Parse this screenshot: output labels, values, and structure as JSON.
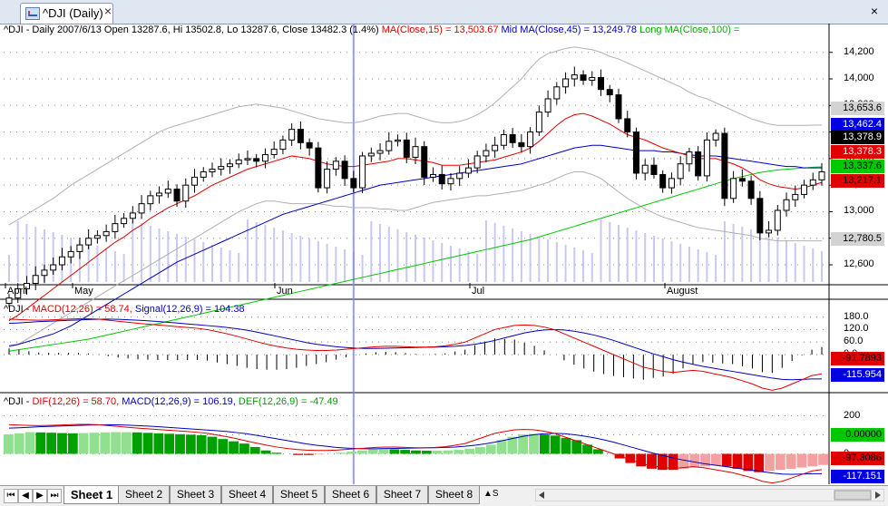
{
  "window": {
    "tab_title": "^DJI (Daily)",
    "close_glyph": "×",
    "close_all_glyph": "×"
  },
  "price_header": {
    "prefix": "^DJI - Daily 2007/6/13 Open 13287.6, Hi 13502.8, Lo 13287.6, Close 13482.3 (1.4%)",
    "ma1": "MA(Close,15) = 13,503.67",
    "ma2": "Mid MA(Close,45) = 13,249.78",
    "ma3": "Long MA(Close,100) ="
  },
  "price_axis": [
    "14,200",
    "14,000",
    "13,800",
    "13,600",
    "13,400",
    "13,200",
    "13,000",
    "12,800",
    "12,600"
  ],
  "price_tags": [
    {
      "text": "13,653.6",
      "bg": "#d3d3d3",
      "fg": "#000000"
    },
    {
      "text": "13,462.4",
      "bg": "#0000e0",
      "fg": "#ffffff"
    },
    {
      "text": "13,378.9",
      "bg": "#000000",
      "fg": "#ffffff"
    },
    {
      "text": "13,378.3",
      "bg": "#e00000",
      "fg": "#ffffff"
    },
    {
      "text": "13,337.6",
      "bg": "#00c800",
      "fg": "#000000"
    },
    {
      "text": "13,217.1",
      "bg": "#e00000",
      "fg": "#000000"
    },
    {
      "text": "12,780.5",
      "bg": "#d3d3d3",
      "fg": "#000000"
    }
  ],
  "months": [
    "April",
    "May",
    "Jun",
    "Jul",
    "August"
  ],
  "macd_header": {
    "prefix": "^DJI - ",
    "macd": "MACD(12,26) = 58.74,",
    "signal": "Signal(12,26,9) = 104.38"
  },
  "macd_axis": [
    "180.0",
    "120.0",
    "60.0",
    "0.0"
  ],
  "macd_tags": [
    {
      "text": "-91.7893",
      "bg": "#e00000",
      "fg": "#000000"
    },
    {
      "text": "-115.954",
      "bg": "#0000e0",
      "fg": "#ffffff"
    }
  ],
  "dif_header": {
    "prefix": "^DJI - ",
    "dif": "DIF(12,26) = 58.70,",
    "macd": "MACD(12,26,9) = 106.19,",
    "def": "DEF(12,26,9) = -47.49"
  },
  "dif_axis": [
    "200",
    "100",
    "0"
  ],
  "dif_tags": [
    {
      "text": "0.00000",
      "bg": "#00c800",
      "fg": "#000000"
    },
    {
      "text": "-97.3086",
      "bg": "#e00000",
      "fg": "#000000"
    },
    {
      "text": "-117.151",
      "bg": "#0000e0",
      "fg": "#ffffff"
    }
  ],
  "sheet_nav": [
    "⏮",
    "◀",
    "▶",
    "⏭"
  ],
  "sheets": [
    "Sheet 1",
    "Sheet 2",
    "Sheet 3",
    "Sheet 4",
    "Sheet 5",
    "Sheet 6",
    "Sheet 7",
    "Sheet 8"
  ],
  "active_sheet": "Sheet 1",
  "sheet_more": "▲S",
  "colors": {
    "ma_short": "#e00000",
    "ma_mid": "#0000c0",
    "ma_long": "#00c800",
    "band": "#b0b0b0",
    "volume": "#c8c8f0",
    "cursor": "#8080ff",
    "hist_up": "#00a000",
    "hist_up_light": "#90e090",
    "hist_down": "#e00000",
    "hist_down_light": "#f5a0a0"
  },
  "chart_data": {
    "type": "candlestick",
    "title": "^DJI - Daily",
    "close_series": [
      12350,
      12420,
      12460,
      12520,
      12560,
      12600,
      12660,
      12700,
      12750,
      12800,
      12820,
      12850,
      12910,
      12950,
      12990,
      13060,
      13120,
      13140,
      13170,
      13080,
      13200,
      13260,
      13300,
      13320,
      13340,
      13360,
      13390,
      13400,
      13380,
      13430,
      13470,
      13540,
      13620,
      13520,
      13480,
      13180,
      13320,
      13380,
      13250,
      13180,
      13420,
      13440,
      13460,
      13530,
      13540,
      13410,
      13490,
      13260,
      13280,
      13210,
      13250,
      13290,
      13330,
      13420,
      13460,
      13500,
      13580,
      13520,
      13490,
      13600,
      13750,
      13850,
      13940,
      14000,
      14030,
      13990,
      14010,
      13920,
      13880,
      13700,
      13600,
      13290,
      13350,
      13280,
      13180,
      13250,
      13360,
      13450,
      13270,
      13540,
      13590,
      13100,
      13250,
      13230,
      13100,
      12840,
      12860,
      13010,
      13090,
      13130,
      13200,
      13240,
      13300
    ],
    "ma_short_series": [
      12180,
      12220,
      12270,
      12320,
      12370,
      12420,
      12470,
      12520,
      12570,
      12620,
      12670,
      12720,
      12770,
      12810,
      12860,
      12900,
      12950,
      12990,
      13030,
      13060,
      13090,
      13120,
      13160,
      13200,
      13230,
      13260,
      13290,
      13320,
      13340,
      13360,
      13380,
      13400,
      13420,
      13410,
      13400,
      13380,
      13360,
      13350,
      13340,
      13340,
      13350,
      13360,
      13370,
      13380,
      13400,
      13400,
      13390,
      13380,
      13370,
      13350,
      13350,
      13350,
      13360,
      13370,
      13380,
      13390,
      13410,
      13430,
      13450,
      13480,
      13530,
      13590,
      13650,
      13700,
      13730,
      13740,
      13720,
      13690,
      13660,
      13620,
      13580,
      13560,
      13540,
      13510,
      13480,
      13460,
      13440,
      13420,
      13400,
      13400,
      13400,
      13380,
      13360,
      13330,
      13290,
      13240,
      13210,
      13190,
      13180,
      13170,
      13180,
      13200,
      13220
    ],
    "ma_mid_series": [
      11990,
      12000,
      12020,
      12040,
      12060,
      12080,
      12110,
      12140,
      12180,
      12220,
      12260,
      12300,
      12340,
      12380,
      12420,
      12460,
      12500,
      12540,
      12580,
      12620,
      12650,
      12680,
      12710,
      12740,
      12770,
      12800,
      12830,
      12860,
      12890,
      12920,
      12950,
      12980,
      13000,
      13020,
      13040,
      13060,
      13080,
      13100,
      13120,
      13140,
      13160,
      13180,
      13200,
      13210,
      13220,
      13230,
      13240,
      13250,
      13260,
      13270,
      13280,
      13290,
      13300,
      13310,
      13320,
      13330,
      13340,
      13350,
      13360,
      13380,
      13400,
      13420,
      13440,
      13460,
      13480,
      13490,
      13500,
      13500,
      13490,
      13480,
      13470,
      13460,
      13460,
      13460,
      13450,
      13450,
      13440,
      13430,
      13420,
      13420,
      13420,
      13410,
      13400,
      13390,
      13380,
      13370,
      13360,
      13350,
      13340,
      13340,
      13330,
      13330,
      13330
    ],
    "ma_long_series": [
      11950,
      11960,
      11970,
      11980,
      11990,
      12000,
      12010,
      12020,
      12030,
      12040,
      12055,
      12070,
      12085,
      12100,
      12115,
      12130,
      12145,
      12160,
      12175,
      12190,
      12205,
      12220,
      12235,
      12250,
      12265,
      12280,
      12295,
      12310,
      12325,
      12340,
      12355,
      12370,
      12385,
      12400,
      12415,
      12430,
      12445,
      12460,
      12475,
      12490,
      12505,
      12520,
      12535,
      12550,
      12565,
      12580,
      12595,
      12610,
      12625,
      12640,
      12655,
      12670,
      12685,
      12700,
      12715,
      12730,
      12745,
      12760,
      12775,
      12790,
      12810,
      12830,
      12850,
      12870,
      12890,
      12910,
      12930,
      12950,
      12970,
      12990,
      13010,
      13030,
      13050,
      13070,
      13090,
      13110,
      13130,
      13150,
      13170,
      13190,
      13210,
      13230,
      13250,
      13265,
      13280,
      13295,
      13305,
      13315,
      13320,
      13325,
      13330,
      13335,
      13338
    ],
    "band_upper": [
      12900,
      12940,
      12980,
      13020,
      13060,
      13100,
      13150,
      13200,
      13240,
      13280,
      13320,
      13360,
      13400,
      13440,
      13480,
      13520,
      13560,
      13600,
      13630,
      13650,
      13670,
      13690,
      13710,
      13730,
      13750,
      13770,
      13790,
      13800,
      13810,
      13800,
      13790,
      13780,
      13760,
      13740,
      13720,
      13700,
      13690,
      13680,
      13670,
      13670,
      13680,
      13700,
      13720,
      13730,
      13740,
      13740,
      13720,
      13700,
      13680,
      13670,
      13670,
      13680,
      13700,
      13730,
      13770,
      13820,
      13880,
      13940,
      14000,
      14080,
      14150,
      14190,
      14210,
      14230,
      14240,
      14230,
      14220,
      14200,
      14170,
      14150,
      14120,
      14090,
      14060,
      14030,
      14000,
      13970,
      13940,
      13900,
      13870,
      13850,
      13820,
      13790,
      13760,
      13730,
      13700,
      13680,
      13660,
      13650,
      13650,
      13650,
      13650,
      13652,
      13653
    ],
    "band_lower": [
      11980,
      12000,
      12040,
      12080,
      12120,
      12160,
      12200,
      12240,
      12280,
      12320,
      12360,
      12400,
      12440,
      12480,
      12520,
      12560,
      12600,
      12640,
      12680,
      12720,
      12760,
      12800,
      12840,
      12880,
      12920,
      12960,
      13000,
      13030,
      13060,
      13080,
      13080,
      13070,
      13060,
      13060,
      13060,
      13060,
      13050,
      13040,
      13040,
      13030,
      13030,
      13030,
      13020,
      13020,
      13010,
      13010,
      13030,
      13050,
      13070,
      13080,
      13090,
      13100,
      13110,
      13120,
      13120,
      13130,
      13140,
      13150,
      13160,
      13180,
      13200,
      13220,
      13250,
      13280,
      13300,
      13300,
      13280,
      13250,
      13200,
      13150,
      13100,
      13060,
      13020,
      12990,
      12960,
      12940,
      12920,
      12900,
      12880,
      12870,
      12860,
      12850,
      12840,
      12830,
      12820,
      12800,
      12790,
      12780,
      12780,
      12780,
      12780,
      12780,
      12780
    ],
    "macd_series": [
      170,
      168,
      166,
      165,
      166,
      168,
      170,
      172,
      172,
      170,
      165,
      160,
      155,
      150,
      146,
      142,
      138,
      134,
      130,
      126,
      120,
      110,
      100,
      88,
      75,
      62,
      50,
      40,
      32,
      26,
      22,
      20,
      20,
      22,
      26,
      30,
      34,
      38,
      40,
      40,
      38,
      36,
      36,
      38,
      42,
      50,
      60,
      80,
      100,
      120,
      130,
      140,
      142,
      140,
      132,
      120,
      100,
      80,
      60,
      40,
      20,
      0,
      -20,
      -40,
      -60,
      -70,
      -80,
      -85,
      -80,
      -75,
      -80,
      -90,
      -100,
      -110,
      -125,
      -140,
      -160,
      -170,
      -160,
      -140,
      -120,
      -100,
      -92
    ],
    "signal_series": [
      150,
      152,
      155,
      158,
      160,
      162,
      164,
      166,
      168,
      169,
      170,
      169,
      167,
      165,
      162,
      159,
      155,
      151,
      147,
      143,
      139,
      135,
      130,
      124,
      117,
      108,
      98,
      88,
      78,
      68,
      58,
      50,
      44,
      38,
      34,
      31,
      30,
      30,
      31,
      32,
      33,
      34,
      35,
      36,
      38,
      40,
      44,
      50,
      58,
      68,
      80,
      92,
      104,
      112,
      118,
      120,
      118,
      112,
      104,
      94,
      82,
      68,
      52,
      36,
      20,
      4,
      -10,
      -24,
      -36,
      -46,
      -56,
      -64,
      -72,
      -80,
      -88,
      -96,
      -104,
      -112,
      -118,
      -120,
      -118,
      -116,
      -116
    ],
    "dif_series": [
      170,
      180,
      190,
      188,
      185,
      182,
      180,
      182,
      185,
      188,
      190,
      190,
      188,
      184,
      180,
      176,
      172,
      168,
      164,
      150,
      130,
      110,
      90,
      60,
      30,
      10,
      0,
      -10,
      -10,
      -5,
      0,
      10,
      20,
      30,
      40,
      42,
      40,
      35,
      30,
      28,
      28,
      30,
      35,
      45,
      60,
      80,
      120,
      150,
      170,
      175,
      170,
      160,
      140,
      120,
      80,
      40,
      0,
      -40,
      -80,
      -110,
      -130,
      -140,
      -140,
      -130,
      -120,
      -110,
      -100,
      -110,
      -130,
      -150,
      -160,
      -150,
      -140,
      -130,
      -120,
      -110,
      -97
    ]
  }
}
